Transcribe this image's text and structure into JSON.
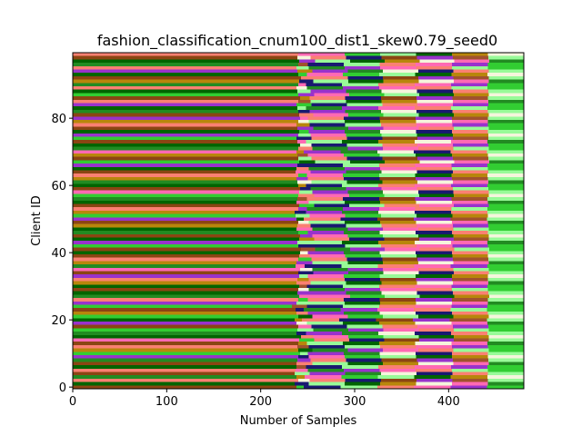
{
  "chart_data": {
    "type": "bar",
    "orientation": "horizontal-stacked",
    "title": "fashion_classification_cnum100_dist1_skew0.79_seed0",
    "xlabel": "Number of Samples",
    "ylabel": "Client ID",
    "xlim": [
      0,
      480
    ],
    "ylim": [
      -0.5,
      99.5
    ],
    "xticks": [
      0,
      100,
      200,
      300,
      400
    ],
    "yticks": [
      0,
      20,
      40,
      60,
      80
    ],
    "grid": false,
    "legend": "none",
    "client_ids": [
      0,
      1,
      2,
      3,
      4,
      5,
      6,
      7,
      8,
      9,
      10,
      11,
      12,
      13,
      14,
      15,
      16,
      17,
      18,
      19,
      20,
      21,
      22,
      23,
      24,
      25,
      26,
      27,
      28,
      29,
      30,
      31,
      32,
      33,
      34,
      35,
      36,
      37,
      38,
      39,
      40,
      41,
      42,
      43,
      44,
      45,
      46,
      47,
      48,
      49,
      50,
      51,
      52,
      53,
      54,
      55,
      56,
      57,
      58,
      59,
      60,
      61,
      62,
      63,
      64,
      65,
      66,
      67,
      68,
      69,
      70,
      71,
      72,
      73,
      74,
      75,
      76,
      77,
      78,
      79,
      80,
      81,
      82,
      83,
      84,
      85,
      86,
      87,
      88,
      89,
      90,
      91,
      92,
      93,
      94,
      95,
      96,
      97,
      98,
      99
    ],
    "dominant_class_samples": [
      238,
      236,
      240,
      238,
      236,
      237,
      238,
      238,
      239,
      240,
      242,
      240,
      239,
      240,
      241,
      243,
      238,
      239,
      240,
      238,
      236,
      240,
      238,
      237,
      233,
      238,
      240,
      241,
      239,
      240,
      241,
      238,
      239,
      241,
      240,
      242,
      237,
      238,
      240,
      241,
      242,
      243,
      240,
      239,
      241,
      242,
      240,
      238,
      239,
      240,
      238,
      237,
      236,
      240,
      241,
      238,
      239,
      240,
      241,
      242,
      240,
      239,
      238,
      240,
      237,
      238,
      239,
      241,
      240,
      239,
      238,
      240,
      242,
      239,
      238,
      240,
      241,
      239,
      238,
      240,
      242,
      241,
      240,
      239,
      238,
      240,
      242,
      240,
      239,
      238,
      240,
      241,
      243,
      240,
      239,
      238,
      240,
      241,
      239,
      240
    ],
    "total_samples": 480,
    "class_colors": [
      "#8B4513",
      "#228B22",
      "#98FB98",
      "#FF69B4",
      "#191970",
      "#B8860B",
      "#9932CC",
      "#006400",
      "#32CD32",
      "#FA8072",
      "#F5F5DC",
      "#A0522D"
    ],
    "dominant_class_index": [
      0,
      7,
      9,
      1,
      0,
      9,
      7,
      0,
      1,
      6,
      8,
      5,
      9,
      0,
      3,
      7,
      1,
      8,
      0,
      6,
      7,
      8,
      5,
      0,
      8,
      6,
      9,
      1,
      7,
      0,
      7,
      5,
      9,
      6,
      0,
      3,
      1,
      5,
      9,
      0,
      7,
      0,
      8,
      6,
      7,
      0,
      1,
      7,
      5,
      0,
      6,
      8,
      5,
      9,
      0,
      7,
      1,
      8,
      3,
      0,
      7,
      1,
      5,
      9,
      0,
      7,
      6,
      8,
      0,
      5,
      3,
      1,
      7,
      0,
      8,
      6,
      7,
      0,
      9,
      5,
      6,
      0,
      1,
      7,
      6,
      9,
      0,
      8,
      7,
      9,
      1,
      5,
      0,
      7,
      6,
      9,
      1,
      7,
      0,
      9
    ],
    "secondary_class_index": [
      8,
      4,
      10,
      5,
      2,
      3,
      11,
      9,
      6,
      4,
      2,
      7,
      11,
      5,
      8,
      9,
      4,
      2,
      3,
      10,
      5,
      7,
      9,
      4,
      11,
      2,
      8,
      3,
      6,
      10,
      11,
      9,
      5,
      2,
      4,
      10,
      3,
      6,
      8,
      9,
      10,
      11,
      4,
      2,
      5,
      6,
      8,
      3,
      9,
      10,
      7,
      2,
      4,
      6,
      8,
      3,
      11,
      9,
      2,
      4,
      5,
      10,
      6,
      8,
      3,
      9,
      4,
      7,
      2,
      11,
      5,
      9,
      10,
      3,
      4,
      2,
      8,
      6,
      5,
      10,
      3,
      9,
      4,
      2,
      8,
      11,
      5,
      6,
      2,
      10,
      3,
      4,
      9,
      8,
      5,
      2,
      11,
      6,
      10,
      3
    ],
    "tail_pattern": [
      [
        4,
        2,
        9,
        3,
        6,
        8
      ],
      [
        2,
        7,
        5,
        10,
        3,
        1
      ],
      [
        9,
        4,
        0,
        6,
        11,
        2
      ],
      [
        3,
        8,
        2,
        7,
        5,
        10
      ],
      [
        6,
        1,
        10,
        4,
        9,
        2
      ],
      [
        1,
        6,
        3,
        9,
        2,
        8
      ]
    ]
  }
}
